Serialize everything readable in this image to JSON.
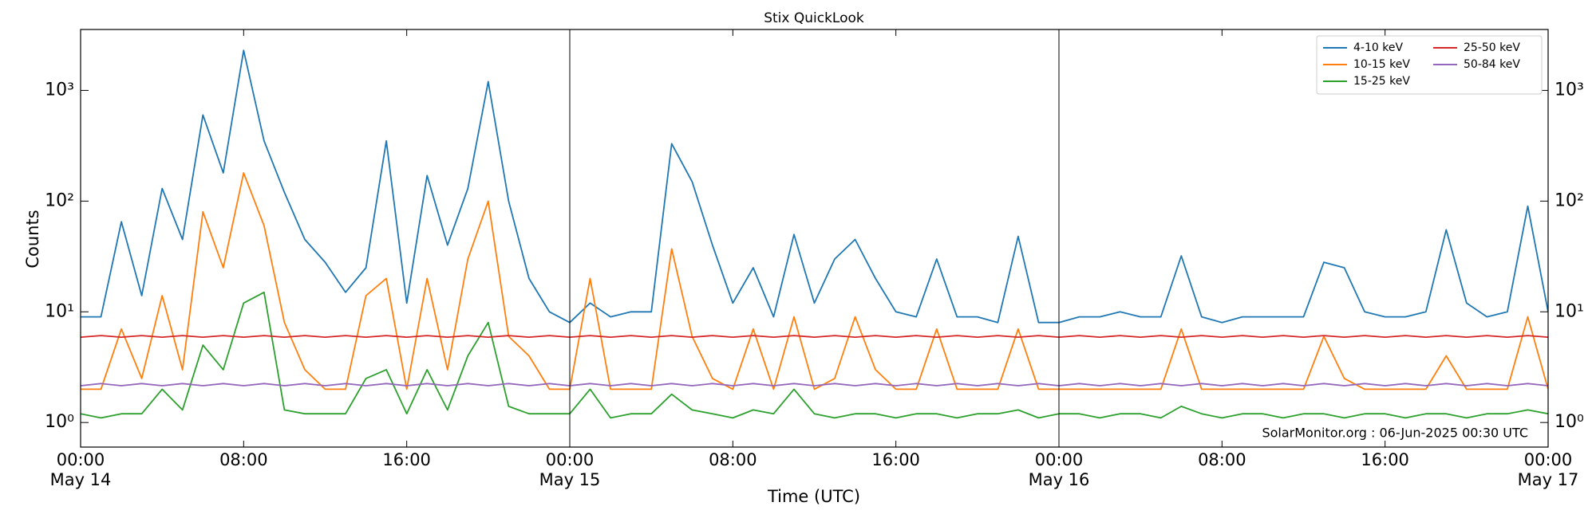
{
  "chart_data": {
    "type": "line",
    "title": "Stix QuickLook",
    "ylabel": "Counts",
    "xlabel": "Time (UTC)",
    "annotation": "SolarMonitor.org : 06-Jun-2025 00:30 UTC",
    "log_y": true,
    "legend": "upper right",
    "xlim": [
      0,
      72
    ],
    "ylim": [
      0.6,
      3550
    ],
    "xticks": [
      {
        "value": 0,
        "label": "00:00",
        "date": "May 14"
      },
      {
        "value": 8,
        "label": "08:00"
      },
      {
        "value": 16,
        "label": "16:00"
      },
      {
        "value": 24,
        "label": "00:00",
        "date": "May 15"
      },
      {
        "value": 32,
        "label": "08:00"
      },
      {
        "value": 40,
        "label": "16:00"
      },
      {
        "value": 48,
        "label": "00:00",
        "date": "May 16"
      },
      {
        "value": 56,
        "label": "08:00"
      },
      {
        "value": 64,
        "label": "16:00"
      },
      {
        "value": 72,
        "label": "00:00",
        "date": "May 17"
      }
    ],
    "yticks": [
      {
        "value": 1,
        "label": "10⁰"
      },
      {
        "value": 10,
        "label": "10¹"
      },
      {
        "value": 100,
        "label": "10²"
      },
      {
        "value": 1000,
        "label": "10³"
      }
    ],
    "x": [
      0,
      1,
      2,
      3,
      4,
      5,
      6,
      7,
      8,
      9,
      10,
      11,
      12,
      13,
      14,
      15,
      16,
      17,
      18,
      19,
      20,
      21,
      22,
      23,
      24,
      25,
      26,
      27,
      28,
      29,
      30,
      31,
      32,
      33,
      34,
      35,
      36,
      37,
      38,
      39,
      40,
      41,
      42,
      43,
      44,
      45,
      46,
      47,
      48,
      49,
      50,
      51,
      52,
      53,
      54,
      55,
      56,
      57,
      58,
      59,
      60,
      61,
      62,
      63,
      64,
      65,
      66,
      67,
      68,
      69,
      70,
      71,
      72
    ],
    "series": [
      {
        "name": "4-10 keV",
        "color": "#1f77b4",
        "values": [
          9,
          9,
          65,
          14,
          130,
          45,
          600,
          180,
          2300,
          350,
          120,
          45,
          28,
          15,
          25,
          350,
          12,
          170,
          40,
          130,
          1200,
          100,
          20,
          10,
          8,
          12,
          9,
          10,
          10,
          330,
          150,
          40,
          12,
          25,
          9,
          50,
          12,
          30,
          45,
          20,
          10,
          9,
          30,
          9,
          9,
          8,
          48,
          8,
          8,
          9,
          9,
          10,
          9,
          9,
          32,
          9,
          8,
          9,
          9,
          9,
          9,
          28,
          25,
          10,
          9,
          9,
          10,
          55,
          12,
          9,
          10,
          90,
          10
        ]
      },
      {
        "name": "10-15 keV",
        "color": "#ff7f0e",
        "values": [
          2,
          2,
          7,
          2.5,
          14,
          3,
          80,
          25,
          180,
          60,
          8,
          3,
          2,
          2,
          14,
          20,
          2,
          20,
          3,
          30,
          100,
          6,
          4,
          2,
          2,
          20,
          2,
          2,
          2,
          37,
          6,
          2.5,
          2,
          7,
          2,
          9,
          2,
          2.5,
          9,
          3,
          2,
          2,
          7,
          2,
          2,
          2,
          7,
          2,
          2,
          2,
          2,
          2,
          2,
          2,
          7,
          2,
          2,
          2,
          2,
          2,
          2,
          6,
          2.5,
          2,
          2,
          2,
          2,
          4,
          2,
          2,
          2,
          9,
          2
        ]
      },
      {
        "name": "15-25 keV",
        "color": "#2ca02c",
        "values": [
          1.2,
          1.1,
          1.2,
          1.2,
          2,
          1.3,
          5,
          3,
          12,
          15,
          1.3,
          1.2,
          1.2,
          1.2,
          2.5,
          3,
          1.2,
          3,
          1.3,
          4,
          8,
          1.4,
          1.2,
          1.2,
          1.2,
          2,
          1.1,
          1.2,
          1.2,
          1.8,
          1.3,
          1.2,
          1.1,
          1.3,
          1.2,
          2,
          1.2,
          1.1,
          1.2,
          1.2,
          1.1,
          1.2,
          1.2,
          1.1,
          1.2,
          1.2,
          1.3,
          1.1,
          1.2,
          1.2,
          1.1,
          1.2,
          1.2,
          1.1,
          1.4,
          1.2,
          1.1,
          1.2,
          1.2,
          1.1,
          1.2,
          1.2,
          1.1,
          1.2,
          1.2,
          1.1,
          1.2,
          1.2,
          1.1,
          1.2,
          1.2,
          1.3,
          1.2
        ]
      },
      {
        "name": "25-50 keV",
        "color": "#d62728",
        "values": [
          5.9,
          6.1,
          5.9,
          6.1,
          5.9,
          6.1,
          5.9,
          6.1,
          5.9,
          6.1,
          5.9,
          6.1,
          5.9,
          6.1,
          5.9,
          6.1,
          5.9,
          6.1,
          5.9,
          6.1,
          5.9,
          6.1,
          5.9,
          6.1,
          5.9,
          6.1,
          5.9,
          6.1,
          5.9,
          6.1,
          5.9,
          6.1,
          5.9,
          6.1,
          5.9,
          6.1,
          5.9,
          6.1,
          5.9,
          6.1,
          5.9,
          6.1,
          5.9,
          6.1,
          5.9,
          6.1,
          5.9,
          6.1,
          5.9,
          6.1,
          5.9,
          6.1,
          5.9,
          6.1,
          5.9,
          6.1,
          5.9,
          6.1,
          5.9,
          6.1,
          5.9,
          6.1,
          5.9,
          6.1,
          5.9,
          6.1,
          5.9,
          6.1,
          5.9,
          6.1,
          5.9,
          6.1,
          5.9
        ]
      },
      {
        "name": "50-84 keV",
        "color": "#9467bd",
        "values": [
          2.15,
          2.25,
          2.15,
          2.25,
          2.15,
          2.25,
          2.15,
          2.25,
          2.15,
          2.25,
          2.15,
          2.25,
          2.15,
          2.25,
          2.15,
          2.25,
          2.15,
          2.25,
          2.15,
          2.25,
          2.15,
          2.25,
          2.15,
          2.25,
          2.15,
          2.25,
          2.15,
          2.25,
          2.15,
          2.25,
          2.15,
          2.25,
          2.15,
          2.25,
          2.15,
          2.25,
          2.15,
          2.25,
          2.15,
          2.25,
          2.15,
          2.25,
          2.15,
          2.25,
          2.15,
          2.25,
          2.15,
          2.25,
          2.15,
          2.25,
          2.15,
          2.25,
          2.15,
          2.25,
          2.15,
          2.25,
          2.15,
          2.25,
          2.15,
          2.25,
          2.15,
          2.25,
          2.15,
          2.25,
          2.15,
          2.25,
          2.15,
          2.25,
          2.15,
          2.25,
          2.15,
          2.25,
          2.15
        ]
      }
    ]
  }
}
